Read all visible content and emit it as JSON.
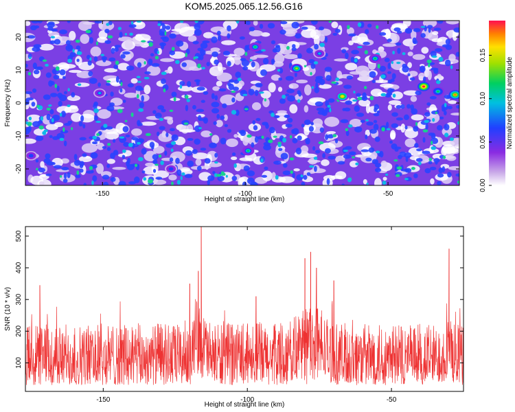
{
  "title": "KOM5.2025.065.12.56.G16",
  "chart_data": [
    {
      "type": "heatmap",
      "xlabel": "Height of straight line (km)",
      "ylabel": "Frequency (Hz)",
      "xlim": [
        -177,
        -25
      ],
      "ylim": [
        -25,
        25
      ],
      "x_ticks": [
        -150,
        -100,
        -50
      ],
      "x_tick_labels": [
        "-150",
        "-100",
        "-50"
      ],
      "y_ticks": [
        -20,
        -10,
        0,
        10,
        20
      ],
      "y_tick_labels": [
        "-20",
        "-10",
        "0",
        "10",
        "20"
      ],
      "colorbar": {
        "label": "Normalized spectral amplitude",
        "range": [
          0,
          0.19
        ],
        "ticks": [
          0.0,
          0.05,
          0.1,
          0.15
        ],
        "tick_labels": [
          "0.00",
          "0.05",
          "0.10",
          "0.15"
        ]
      },
      "peaks": [
        {
          "x": -37.5,
          "y": 5,
          "value": 0.19
        },
        {
          "x": -26.5,
          "y": 2.5,
          "value": 0.16
        },
        {
          "x": -32.5,
          "y": 3.5,
          "value": 0.11
        },
        {
          "x": -66,
          "y": 2,
          "value": 0.15
        },
        {
          "x": -54.5,
          "y": 13.5,
          "value": 0.1
        },
        {
          "x": -82,
          "y": 10.5,
          "value": 0.12
        },
        {
          "x": -96.5,
          "y": 17,
          "value": 0.1
        },
        {
          "x": -151,
          "y": 3,
          "value": 0.08
        },
        {
          "x": -99,
          "y": -14.5,
          "value": 0.1
        },
        {
          "x": -74,
          "y": 15,
          "value": 0.08
        },
        {
          "x": -126,
          "y": -20,
          "value": 0.07
        },
        {
          "x": -175,
          "y": -16,
          "value": 0.07
        }
      ]
    },
    {
      "type": "line",
      "xlabel": "Height of straight line (km)",
      "ylabel": "SNR (10 * v/v)",
      "xlim": [
        -177,
        -25
      ],
      "ylim": [
        10,
        530
      ],
      "x_ticks": [
        -150,
        -100,
        -50
      ],
      "x_tick_labels": [
        "-150",
        "-100",
        "-50"
      ],
      "y_ticks": [
        100,
        200,
        300,
        400,
        500
      ],
      "y_tick_labels": [
        "100",
        "200",
        "300",
        "400",
        "500"
      ],
      "color": "#ee3333",
      "baseline_level": 105,
      "noise_range": [
        30,
        290
      ],
      "peaks": [
        {
          "x": -116,
          "y": 530
        },
        {
          "x": -117,
          "y": 390
        },
        {
          "x": -78,
          "y": 450
        },
        {
          "x": -80,
          "y": 430
        },
        {
          "x": -76,
          "y": 400
        },
        {
          "x": -30,
          "y": 460
        },
        {
          "x": -172,
          "y": 345
        },
        {
          "x": -120,
          "y": 350
        },
        {
          "x": -97,
          "y": 310
        },
        {
          "x": -70,
          "y": 360
        }
      ]
    }
  ]
}
